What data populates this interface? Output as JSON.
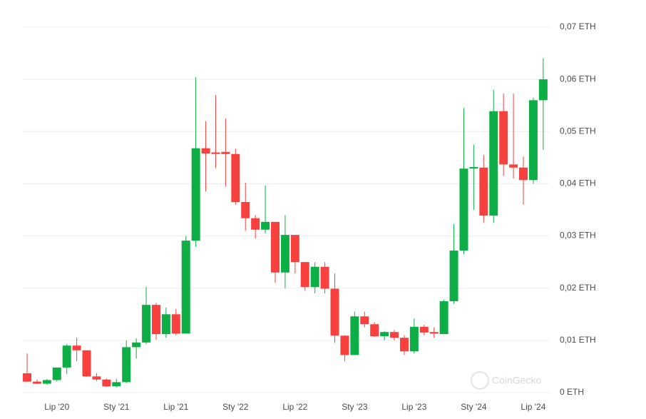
{
  "chart_data": {
    "type": "candlestick",
    "watermark": "CoinGecko",
    "categories": [
      null,
      null,
      null,
      "Lip '20",
      null,
      null,
      null,
      null,
      null,
      "Sty '21",
      null,
      null,
      null,
      null,
      null,
      "Lip '21",
      null,
      null,
      null,
      null,
      null,
      "Sty '22",
      null,
      null,
      null,
      null,
      null,
      "Lip '22",
      null,
      null,
      null,
      null,
      null,
      "Sty '23",
      null,
      null,
      null,
      null,
      null,
      "Lip '23",
      null,
      null,
      null,
      null,
      null,
      "Sty '24",
      null,
      null,
      null,
      null,
      null,
      "Lip '24",
      null
    ],
    "open": [
      0.0037,
      0.0021,
      0.0017,
      0.0024,
      0.0048,
      0.009,
      0.0081,
      0.0031,
      0.0025,
      0.0012,
      0.002,
      0.0087,
      0.0096,
      0.0168,
      0.0112,
      0.015,
      0.0113,
      0.0291,
      0.0468,
      0.046,
      0.0461,
      0.0457,
      0.0365,
      0.0334,
      0.0312,
      0.0327,
      0.023,
      0.0302,
      0.025,
      0.0202,
      0.0241,
      0.0199,
      0.0109,
      0.0072,
      0.0146,
      0.0131,
      0.0108,
      0.0116,
      0.0105,
      0.0079,
      0.0126,
      0.0116,
      0.0112,
      0.0175,
      0.0272,
      0.0429,
      0.0431,
      0.0339,
      0.0539,
      0.0437,
      0.0431,
      0.0407,
      0.056
    ],
    "high": [
      0.0075,
      0.0025,
      0.0026,
      0.0048,
      0.0093,
      0.0105,
      0.0081,
      0.0037,
      0.0027,
      0.0026,
      0.01,
      0.0104,
      0.0202,
      0.0172,
      0.0163,
      0.016,
      0.03,
      0.0604,
      0.052,
      0.057,
      0.0525,
      0.0467,
      0.0402,
      0.034,
      0.0397,
      0.0327,
      0.034,
      0.0302,
      0.025,
      0.025,
      0.025,
      0.0228,
      0.011,
      0.0155,
      0.0155,
      0.0135,
      0.0118,
      0.012,
      0.011,
      0.0142,
      0.013,
      0.0125,
      0.0178,
      0.0323,
      0.0545,
      0.0475,
      0.0455,
      0.058,
      0.0573,
      0.0573,
      0.0452,
      0.0565,
      0.064
    ],
    "low": [
      0.002,
      0.0016,
      0.0015,
      0.0021,
      0.0036,
      0.006,
      0.003,
      0.0022,
      0.0011,
      0.001,
      0.0018,
      0.0065,
      0.0093,
      0.0101,
      0.0105,
      0.011,
      0.0113,
      0.028,
      0.0385,
      0.043,
      0.0395,
      0.036,
      0.031,
      0.0295,
      0.0305,
      0.021,
      0.02,
      0.0228,
      0.0195,
      0.019,
      0.019,
      0.0095,
      0.006,
      0.0072,
      0.0125,
      0.0106,
      0.01,
      0.01,
      0.0072,
      0.0075,
      0.011,
      0.0105,
      0.0112,
      0.017,
      0.0265,
      0.035,
      0.0325,
      0.0325,
      0.0415,
      0.041,
      0.036,
      0.04,
      0.0465
    ],
    "close": [
      0.0021,
      0.0017,
      0.0024,
      0.0048,
      0.009,
      0.0081,
      0.0031,
      0.0025,
      0.0012,
      0.002,
      0.0087,
      0.0096,
      0.0168,
      0.0112,
      0.015,
      0.0113,
      0.0291,
      0.0468,
      0.0458,
      0.0457,
      0.0457,
      0.0365,
      0.0334,
      0.0312,
      0.0327,
      0.023,
      0.0302,
      0.025,
      0.0202,
      0.0241,
      0.0199,
      0.0109,
      0.0072,
      0.0146,
      0.0131,
      0.0108,
      0.0116,
      0.0105,
      0.0079,
      0.0126,
      0.0115,
      0.0113,
      0.0175,
      0.0272,
      0.0429,
      0.0432,
      0.0339,
      0.0539,
      0.0437,
      0.0431,
      0.0407,
      0.056,
      0.06
    ],
    "up_color": "#0cae45",
    "down_color": "#f7413f",
    "ylim": [
      0,
      0.07
    ],
    "yticks": [
      {
        "value": 0,
        "label": "0 ETH"
      },
      {
        "value": 0.01,
        "label": "0,01 ETH"
      },
      {
        "value": 0.02,
        "label": "0,02 ETH"
      },
      {
        "value": 0.03,
        "label": "0,03 ETH"
      },
      {
        "value": 0.04,
        "label": "0,04 ETH"
      },
      {
        "value": 0.05,
        "label": "0,05 ETH"
      },
      {
        "value": 0.06,
        "label": "0,06 ETH"
      },
      {
        "value": 0.07,
        "label": "0,07 ETH"
      }
    ],
    "grid": true
  }
}
